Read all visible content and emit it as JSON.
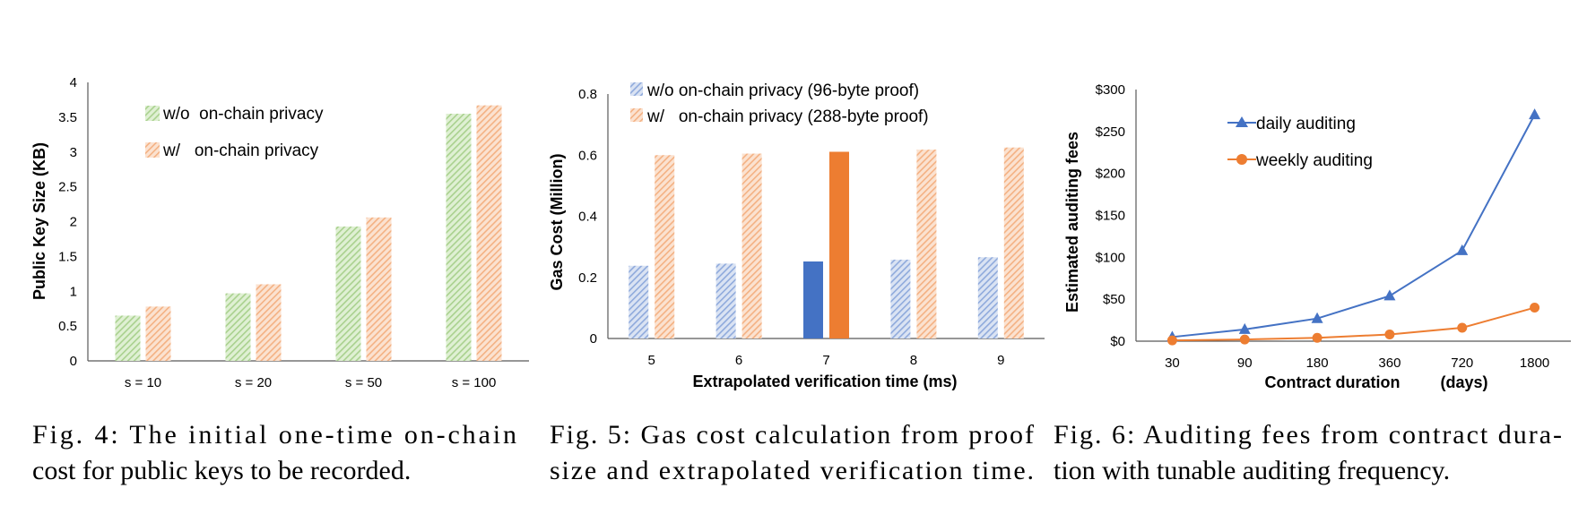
{
  "chart_data": [
    {
      "type": "bar",
      "categories": [
        "s = 10",
        "s = 20",
        "s = 50",
        "s = 100"
      ],
      "series": [
        {
          "name": "w/o  on-chain privacy",
          "values": [
            0.65,
            0.97,
            1.93,
            3.55
          ],
          "color": "#a9d18e"
        },
        {
          "name": "w/   on-chain privacy",
          "values": [
            0.78,
            1.1,
            2.06,
            3.67
          ],
          "color": "#f4b183"
        }
      ],
      "ylabel": "Public Key Size   (KB)",
      "yticks": [
        "0",
        "0.5",
        "1",
        "1.5",
        "2",
        "2.5",
        "3",
        "3.5",
        "4"
      ],
      "ylim": [
        0,
        4
      ],
      "legend_position": "top-left",
      "grid": false
    },
    {
      "type": "bar",
      "categories": [
        "5",
        "6",
        "7",
        "8",
        "9"
      ],
      "series": [
        {
          "name": "w/o on-chain privacy (96-byte proof)",
          "values": [
            0.238,
            0.245,
            0.252,
            0.258,
            0.266
          ],
          "color": "#8faadc",
          "highlight_color": "#4472c4"
        },
        {
          "name": "w/   on-chain privacy (288-byte proof)",
          "values": [
            0.6,
            0.605,
            0.611,
            0.618,
            0.625
          ],
          "color": "#f4b183",
          "highlight_color": "#ed7d31"
        }
      ],
      "highlight_category": "7",
      "xlabel": "Extrapolated verification time (ms)",
      "ylabel": "Gas Cost (Million)",
      "yticks": [
        "0",
        "0.2",
        "0.4",
        "0.6",
        "0.8"
      ],
      "ylim": [
        0,
        0.8
      ],
      "legend_position": "top",
      "grid": false
    },
    {
      "type": "line",
      "categories": [
        "30",
        "90",
        "180",
        "360",
        "720",
        "1800"
      ],
      "series": [
        {
          "name": "daily auditing",
          "values": [
            5,
            14,
            27,
            54,
            108,
            270
          ],
          "color": "#4472c4",
          "marker": "triangle"
        },
        {
          "name": "weekly auditing",
          "values": [
            1,
            2,
            4,
            8,
            16,
            40
          ],
          "color": "#ed7d31",
          "marker": "circle"
        }
      ],
      "xlabel": "Contract duration         (days)",
      "ylabel": "Estimated auditing fees",
      "yticks": [
        "$0",
        "$50",
        "$100",
        "$150",
        "$200",
        "$250",
        "$300"
      ],
      "ylim": [
        0,
        300
      ],
      "legend_position": "top-left",
      "grid": false
    }
  ],
  "captions": [
    {
      "lines": [
        "Fig. 4: The initial one-time on-chain",
        "cost for public keys to be recorded."
      ]
    },
    {
      "lines": [
        "Fig. 5: Gas cost calculation from proof",
        "size and extrapolated verification time."
      ]
    },
    {
      "lines": [
        "Fig. 6: Auditing fees from contract dura-",
        "tion with tunable auditing frequency."
      ]
    }
  ]
}
